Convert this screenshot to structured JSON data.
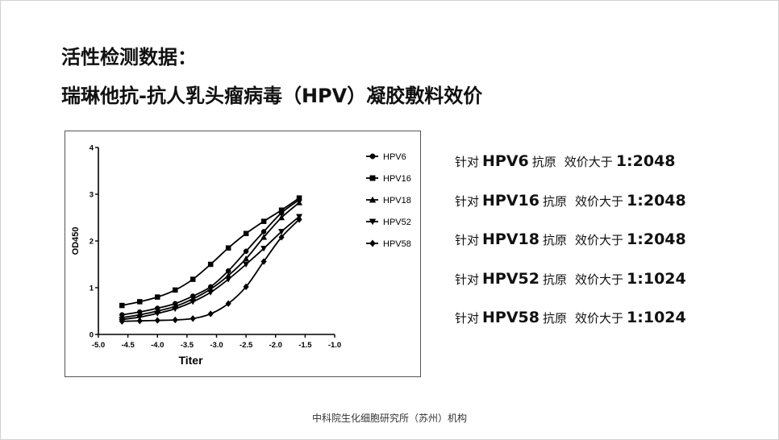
{
  "slide": {
    "title_line1": "活性检测数据：",
    "title_line2": "瑞琳他抗-抗人乳头瘤病毒（HPV）凝胶敷料效价",
    "footer": "中科院生化细胞研究所（苏州）机构"
  },
  "results": [
    {
      "prefix": "针对",
      "type": "HPV6",
      "antigen": "抗原",
      "titer_label": "效价大于",
      "titer": "1:2048"
    },
    {
      "prefix": "针对",
      "type": "HPV16",
      "antigen": "抗原",
      "titer_label": "效价大于",
      "titer": "1:2048"
    },
    {
      "prefix": "针对",
      "type": "HPV18",
      "antigen": "抗原",
      "titer_label": "效价大于",
      "titer": "1:2048"
    },
    {
      "prefix": "针对",
      "type": "HPV52",
      "antigen": "抗原",
      "titer_label": "效价大于",
      "titer": "1:1024"
    },
    {
      "prefix": "针对",
      "type": "HPV58",
      "antigen": "抗原",
      "titer_label": "效价大于",
      "titer": "1:1024"
    }
  ],
  "chart_data": {
    "type": "line",
    "xlabel": "Titer",
    "ylabel": "OD450",
    "xlim": [
      -5.0,
      -1.0
    ],
    "ylim": [
      0,
      4
    ],
    "xticks": [
      "-5.0",
      "-4.5",
      "-4.0",
      "-3.5",
      "-3.0",
      "-2.5",
      "-2.0",
      "-1.5",
      "-1.0"
    ],
    "yticks": [
      "0",
      "1",
      "2",
      "3",
      "4"
    ],
    "legend": "top-right",
    "grid": false,
    "x": [
      -4.6,
      -4.3,
      -4.0,
      -3.7,
      -3.4,
      -3.1,
      -2.8,
      -2.5,
      -2.2,
      -1.9,
      -1.6
    ],
    "series": [
      {
        "name": "HPV6",
        "marker": "circle",
        "values": [
          0.42,
          0.48,
          0.56,
          0.66,
          0.82,
          1.02,
          1.36,
          1.78,
          2.2,
          2.6,
          2.88
        ]
      },
      {
        "name": "HPV16",
        "marker": "square",
        "values": [
          0.62,
          0.7,
          0.8,
          0.95,
          1.18,
          1.5,
          1.85,
          2.16,
          2.42,
          2.66,
          2.92
        ]
      },
      {
        "name": "HPV18",
        "marker": "triangle-up",
        "values": [
          0.36,
          0.42,
          0.5,
          0.6,
          0.76,
          0.97,
          1.26,
          1.62,
          2.08,
          2.5,
          2.82
        ]
      },
      {
        "name": "HPV52",
        "marker": "triangle-down",
        "values": [
          0.32,
          0.37,
          0.45,
          0.55,
          0.7,
          0.9,
          1.18,
          1.5,
          1.84,
          2.2,
          2.52
        ]
      },
      {
        "name": "HPV58",
        "marker": "diamond",
        "values": [
          0.28,
          0.29,
          0.3,
          0.31,
          0.34,
          0.44,
          0.66,
          1.02,
          1.56,
          2.08,
          2.46
        ]
      }
    ]
  }
}
